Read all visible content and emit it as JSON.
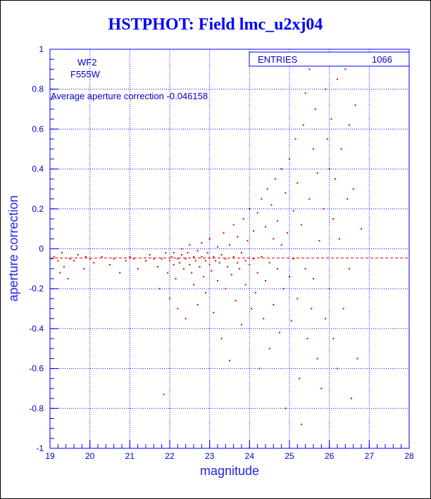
{
  "title": "HSTPHOT: Field lmc_u2xj04",
  "colors": {
    "axis": "#0000ff",
    "points": "#dd0000",
    "title": "#0000ff"
  },
  "stats": {
    "entries_label": "ENTRIES",
    "entries_value": "1066"
  },
  "annotations": {
    "chip": "WF2",
    "filter": "F555W",
    "average": "Average aperture correction -0.046158"
  },
  "chart_data": {
    "type": "scatter",
    "title": "HSTPHOT: Field lmc_u2xj04",
    "xlabel": "magnitude",
    "ylabel": "aperture correction",
    "xlim": [
      19,
      28
    ],
    "ylim": [
      -1,
      1
    ],
    "xticks": [
      "19",
      "20",
      "21",
      "22",
      "23",
      "24",
      "25",
      "26",
      "27",
      "28"
    ],
    "yticks": [
      "-1",
      "-0.8",
      "-0.6",
      "-0.4",
      "-0.2",
      "0",
      "0.2",
      "0.4",
      "0.6",
      "0.8",
      "1"
    ],
    "grid": true,
    "reference_line": {
      "y": -0.046158,
      "style": "dashed"
    },
    "entries": 1066,
    "points": [
      [
        19.1,
        -0.04
      ],
      [
        19.2,
        -0.06
      ],
      [
        19.25,
        -0.12
      ],
      [
        19.3,
        -0.02
      ],
      [
        19.35,
        -0.09
      ],
      [
        19.45,
        -0.15
      ],
      [
        19.5,
        -0.05
      ],
      [
        19.6,
        -0.06
      ],
      [
        19.7,
        -0.03
      ],
      [
        19.85,
        -0.1
      ],
      [
        19.9,
        -0.04
      ],
      [
        20.0,
        -0.05
      ],
      [
        20.1,
        -0.07
      ],
      [
        20.3,
        -0.04
      ],
      [
        20.5,
        -0.08
      ],
      [
        20.6,
        -0.05
      ],
      [
        20.75,
        -0.12
      ],
      [
        20.9,
        -0.06
      ],
      [
        21.0,
        -0.04
      ],
      [
        21.1,
        -0.05
      ],
      [
        21.2,
        -0.1
      ],
      [
        21.4,
        -0.06
      ],
      [
        21.5,
        -0.03
      ],
      [
        21.6,
        -0.05
      ],
      [
        21.7,
        -0.09
      ],
      [
        21.75,
        -0.2
      ],
      [
        21.8,
        -0.05
      ],
      [
        21.85,
        -0.73
      ],
      [
        21.9,
        -0.02
      ],
      [
        21.95,
        -0.12
      ],
      [
        22.0,
        -0.06
      ],
      [
        22.0,
        -0.25
      ],
      [
        22.05,
        -0.04
      ],
      [
        22.1,
        -0.08
      ],
      [
        22.1,
        -0.02
      ],
      [
        22.15,
        -0.15
      ],
      [
        22.2,
        -0.05
      ],
      [
        22.2,
        -0.3
      ],
      [
        22.25,
        -0.07
      ],
      [
        22.3,
        -0.03
      ],
      [
        22.3,
        0.0
      ],
      [
        22.35,
        -0.1
      ],
      [
        22.4,
        -0.05
      ],
      [
        22.4,
        -0.35
      ],
      [
        22.45,
        -0.02
      ],
      [
        22.5,
        -0.08
      ],
      [
        22.5,
        0.02
      ],
      [
        22.55,
        -0.12
      ],
      [
        22.6,
        -0.04
      ],
      [
        22.6,
        -0.18
      ],
      [
        22.65,
        -0.06
      ],
      [
        22.7,
        -0.01
      ],
      [
        22.7,
        -0.28
      ],
      [
        22.75,
        -0.09
      ],
      [
        22.8,
        -0.04
      ],
      [
        22.8,
        0.03
      ],
      [
        22.85,
        -0.14
      ],
      [
        22.9,
        -0.06
      ],
      [
        22.9,
        -0.22
      ],
      [
        22.95,
        -0.02
      ],
      [
        23.0,
        -0.08
      ],
      [
        23.0,
        0.05
      ],
      [
        23.05,
        -0.11
      ],
      [
        23.1,
        -0.04
      ],
      [
        23.1,
        -0.32
      ],
      [
        23.15,
        -0.06
      ],
      [
        23.2,
        0.01
      ],
      [
        23.2,
        -0.16
      ],
      [
        23.25,
        -0.07
      ],
      [
        23.3,
        -0.03
      ],
      [
        23.3,
        -0.45
      ],
      [
        23.35,
        0.08
      ],
      [
        23.4,
        -0.05
      ],
      [
        23.4,
        -0.2
      ],
      [
        23.45,
        -0.09
      ],
      [
        23.5,
        0.02
      ],
      [
        23.5,
        -0.56
      ],
      [
        23.55,
        -0.13
      ],
      [
        23.6,
        -0.04
      ],
      [
        23.6,
        0.12
      ],
      [
        23.65,
        -0.26
      ],
      [
        23.7,
        -0.07
      ],
      [
        23.7,
        0.06
      ],
      [
        23.75,
        -0.1
      ],
      [
        23.8,
        -0.02
      ],
      [
        23.8,
        -0.38
      ],
      [
        23.85,
        0.15
      ],
      [
        23.9,
        -0.06
      ],
      [
        23.9,
        -0.18
      ],
      [
        23.95,
        0.04
      ],
      [
        24.0,
        -0.08
      ],
      [
        24.0,
        0.2
      ],
      [
        24.05,
        -0.3
      ],
      [
        24.1,
        -0.05
      ],
      [
        24.1,
        0.09
      ],
      [
        24.15,
        -0.22
      ],
      [
        24.2,
        0.18
      ],
      [
        24.2,
        -0.12
      ],
      [
        24.25,
        -0.6
      ],
      [
        24.3,
        0.25
      ],
      [
        24.3,
        -0.04
      ],
      [
        24.35,
        -0.35
      ],
      [
        24.4,
        0.11
      ],
      [
        24.4,
        -0.16
      ],
      [
        24.45,
        0.3
      ],
      [
        24.5,
        -0.07
      ],
      [
        24.5,
        -0.5
      ],
      [
        24.55,
        0.22
      ],
      [
        24.6,
        0.05
      ],
      [
        24.6,
        -0.28
      ],
      [
        24.65,
        0.35
      ],
      [
        24.7,
        -0.1
      ],
      [
        24.7,
        0.14
      ],
      [
        24.75,
        -0.42
      ],
      [
        24.8,
        0.4
      ],
      [
        24.8,
        0.02
      ],
      [
        24.85,
        -0.2
      ],
      [
        24.9,
        0.28
      ],
      [
        24.9,
        -0.8
      ],
      [
        24.95,
        0.08
      ],
      [
        25.0,
        -0.14
      ],
      [
        25.0,
        0.45
      ],
      [
        25.05,
        -0.36
      ],
      [
        25.1,
        0.19
      ],
      [
        25.1,
        -0.05
      ],
      [
        25.15,
        0.55
      ],
      [
        25.2,
        -0.25
      ],
      [
        25.2,
        0.33
      ],
      [
        25.25,
        -0.65
      ],
      [
        25.3,
        0.12
      ],
      [
        25.3,
        -0.88
      ],
      [
        25.35,
        0.62
      ],
      [
        25.4,
        -0.1
      ],
      [
        25.4,
        0.78
      ],
      [
        25.45,
        -0.45
      ],
      [
        25.5,
        0.25
      ],
      [
        25.5,
        0.9
      ],
      [
        25.55,
        -0.3
      ],
      [
        25.6,
        0.5
      ],
      [
        25.6,
        -0.15
      ],
      [
        25.65,
        0.7
      ],
      [
        25.7,
        -0.55
      ],
      [
        25.7,
        0.38
      ],
      [
        25.75,
        0.04
      ],
      [
        25.8,
        0.93
      ],
      [
        25.8,
        -0.7
      ],
      [
        25.85,
        0.2
      ],
      [
        25.9,
        0.8
      ],
      [
        25.9,
        -0.35
      ],
      [
        25.95,
        0.55
      ],
      [
        26.0,
        -0.2
      ],
      [
        26.0,
        0.4
      ],
      [
        26.05,
        0.65
      ],
      [
        26.1,
        -0.45
      ],
      [
        26.1,
        0.15
      ],
      [
        26.15,
        0.35
      ],
      [
        26.2,
        -0.6
      ],
      [
        26.2,
        0.85
      ],
      [
        26.25,
        0.05
      ],
      [
        26.3,
        0.5
      ],
      [
        26.35,
        -0.3
      ],
      [
        26.4,
        0.9
      ],
      [
        26.45,
        0.25
      ],
      [
        26.5,
        -0.1
      ],
      [
        26.5,
        0.62
      ],
      [
        26.55,
        -0.75
      ],
      [
        26.6,
        0.3
      ],
      [
        26.65,
        0.72
      ],
      [
        26.7,
        -0.55
      ],
      [
        26.8,
        0.1
      ]
    ]
  }
}
